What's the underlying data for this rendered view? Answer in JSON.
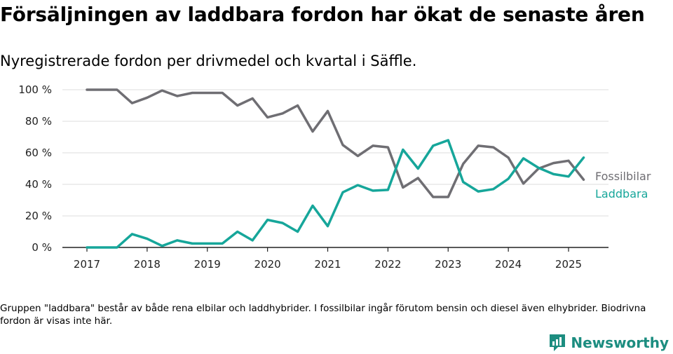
{
  "title": "Försäljningen av laddbara fordon har ökat de senaste åren",
  "subtitle": "Nyregistrerade fordon per drivmedel och kvartal i Säffle.",
  "footnote": "Gruppen \"laddbara\" består av både rena elbilar och laddhybrider. I fossilbilar ingår förutom bensin och diesel även elhybrider. Biodrivna fordon är visas inte här.",
  "brand": {
    "name": "Newsworthy",
    "icon": "newsworthy-logo-icon",
    "color": "#1c8d80"
  },
  "chart_data": {
    "type": "line",
    "title": "Försäljningen av laddbara fordon har ökat de senaste åren",
    "subtitle": "Nyregistrerade fordon per drivmedel och kvartal i Säffle.",
    "xlabel": "",
    "ylabel": "",
    "x_ticks": [
      "2017",
      "2018",
      "2019",
      "2020",
      "2021",
      "2022",
      "2023",
      "2024",
      "2025"
    ],
    "y_ticks": [
      "0 %",
      "20 %",
      "40 %",
      "60 %",
      "80 %",
      "100 %"
    ],
    "ylim": [
      0,
      100
    ],
    "xlim": [
      2017,
      2025.25
    ],
    "grid": "horizontal",
    "legend": "direct labels at line ends (right)",
    "x": [
      2017,
      2017.25,
      2017.5,
      2017.75,
      2018,
      2018.25,
      2018.5,
      2018.75,
      2019,
      2019.25,
      2019.5,
      2019.75,
      2020,
      2020.25,
      2020.5,
      2020.75,
      2021,
      2021.25,
      2021.5,
      2021.75,
      2022,
      2022.25,
      2022.5,
      2022.75,
      2023,
      2023.25,
      2023.5,
      2023.75,
      2024,
      2024.25,
      2024.5,
      2024.75,
      2025,
      2025.25
    ],
    "series": [
      {
        "name": "Fossilbilar",
        "color": "#6f6e73",
        "values": [
          100,
          100,
          100,
          91.5,
          95,
          99.5,
          96,
          98,
          98,
          98,
          90,
          94.5,
          82.5,
          85,
          90,
          73.5,
          86.5,
          65,
          58,
          64.5,
          63.5,
          38,
          44,
          32,
          32,
          53,
          64.5,
          63.5,
          57,
          40.5,
          50,
          53.5,
          55,
          43
        ]
      },
      {
        "name": "Laddbara",
        "color": "#16a69a",
        "values": [
          0,
          0,
          0,
          8.5,
          5.5,
          1,
          4.5,
          2.5,
          2.5,
          2.5,
          10,
          4.5,
          17.5,
          15.5,
          10,
          26.5,
          13.5,
          35,
          39.5,
          36,
          36.5,
          62,
          50,
          64.5,
          68,
          41.5,
          35.5,
          37,
          43.5,
          56.5,
          50.5,
          46.5,
          45,
          57
        ]
      }
    ]
  }
}
